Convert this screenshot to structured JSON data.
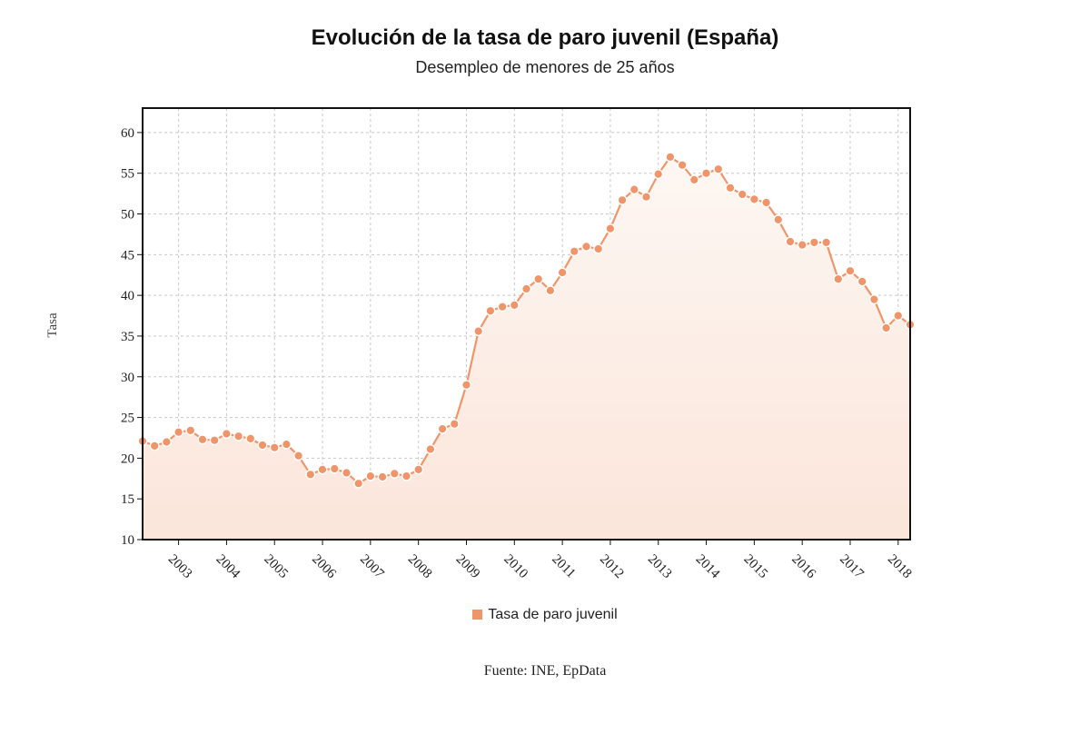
{
  "title": "Evolución de la tasa de paro juvenil (España)",
  "subtitle": "Desempleo de menores de 25 años",
  "source": "Fuente: INE, EpData",
  "colors": {
    "series": "#f0956a",
    "grid": "#c8c8c8",
    "fill_top": "#fdf7f3",
    "fill_bottom": "#fbe5da"
  },
  "chart_data": {
    "type": "area",
    "xlabel": "",
    "ylabel": "Tasa",
    "ylim": [
      10,
      63
    ],
    "yticks": [
      10,
      15,
      20,
      25,
      30,
      35,
      40,
      45,
      50,
      55,
      60
    ],
    "xlim": [
      2002.25,
      2018.25
    ],
    "xticks": [
      "2003",
      "2004",
      "2005",
      "2006",
      "2007",
      "2008",
      "2009",
      "2010",
      "2011",
      "2012",
      "2013",
      "2014",
      "2015",
      "2016",
      "2017",
      "2018"
    ],
    "grid": true,
    "legend": "bottom",
    "series": [
      {
        "name": "Tasa de paro juvenil",
        "x": [
          "2002-T2",
          "2002-T3",
          "2002-T4",
          "2003-T1",
          "2003-T2",
          "2003-T3",
          "2003-T4",
          "2004-T1",
          "2004-T2",
          "2004-T3",
          "2004-T4",
          "2005-T1",
          "2005-T2",
          "2005-T3",
          "2005-T4",
          "2006-T1",
          "2006-T2",
          "2006-T3",
          "2006-T4",
          "2007-T1",
          "2007-T2",
          "2007-T3",
          "2007-T4",
          "2008-T1",
          "2008-T2",
          "2008-T3",
          "2008-T4",
          "2009-T1",
          "2009-T2",
          "2009-T3",
          "2009-T4",
          "2010-T1",
          "2010-T2",
          "2010-T3",
          "2010-T4",
          "2011-T1",
          "2011-T2",
          "2011-T3",
          "2011-T4",
          "2012-T1",
          "2012-T2",
          "2012-T3",
          "2012-T4",
          "2013-T1",
          "2013-T2",
          "2013-T3",
          "2013-T4",
          "2014-T1",
          "2014-T2",
          "2014-T3",
          "2014-T4",
          "2015-T1",
          "2015-T2",
          "2015-T3",
          "2015-T4",
          "2016-T1",
          "2016-T2",
          "2016-T3",
          "2016-T4",
          "2017-T1",
          "2017-T2",
          "2017-T3",
          "2017-T4",
          "2018-T1",
          "2018-T2"
        ],
        "values": [
          22.1,
          21.5,
          22.0,
          23.2,
          23.4,
          22.3,
          22.2,
          23.0,
          22.7,
          22.4,
          21.6,
          21.3,
          21.7,
          20.3,
          18.0,
          18.6,
          18.7,
          18.2,
          16.9,
          17.8,
          17.7,
          18.1,
          17.8,
          18.6,
          21.1,
          23.6,
          24.2,
          29.0,
          35.6,
          38.1,
          38.6,
          38.8,
          40.8,
          42.0,
          40.6,
          42.8,
          45.4,
          46.0,
          45.7,
          48.2,
          51.7,
          53.0,
          52.1,
          54.9,
          57.0,
          56.0,
          54.2,
          55.0,
          55.5,
          53.2,
          52.4,
          51.8,
          51.4,
          49.3,
          46.6,
          46.2,
          46.5,
          46.5,
          42.0,
          43.0,
          41.7,
          39.5,
          36.0,
          37.5,
          36.4
        ]
      }
    ]
  }
}
